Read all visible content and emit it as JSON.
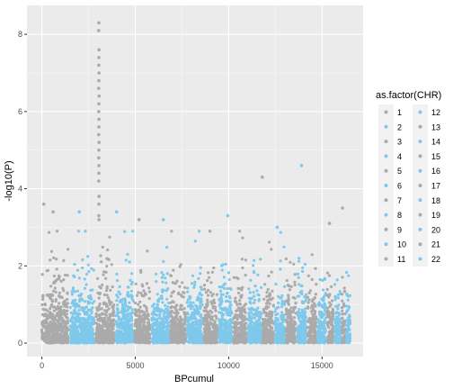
{
  "chart_data": {
    "type": "scatter",
    "title": "",
    "xlabel": "BPcumul",
    "ylabel": "-log10(P)",
    "xlim": [
      -800,
      17200
    ],
    "ylim": [
      -0.35,
      8.75
    ],
    "x_ticks": [
      0,
      5000,
      10000,
      15000
    ],
    "x_tick_labels": [
      "0",
      "5000",
      "10000",
      "15000"
    ],
    "y_ticks": [
      0,
      2,
      4,
      6,
      8
    ],
    "y_tick_labels": [
      "0",
      "2",
      "4",
      "6",
      "8"
    ],
    "grid": true,
    "legend": {
      "title": "as.factor(CHR)",
      "placement": "right",
      "columns": 2,
      "entries": [
        "1",
        "2",
        "3",
        "4",
        "5",
        "6",
        "7",
        "8",
        "9",
        "10",
        "11",
        "12",
        "13",
        "14",
        "15",
        "16",
        "17",
        "18",
        "19",
        "20",
        "21",
        "22"
      ]
    },
    "colors": {
      "odd_chr": "#aaaaaa",
      "even_chr": "#7ec8ec",
      "panel_bg": "#ebebeb",
      "grid": "#ffffff"
    },
    "chromosomes": [
      {
        "chr": 1,
        "x_start": 0,
        "x_end": 1400
      },
      {
        "chr": 2,
        "x_start": 1520,
        "x_end": 2800
      },
      {
        "chr": 3,
        "x_start": 2900,
        "x_end": 3880
      },
      {
        "chr": 4,
        "x_start": 3970,
        "x_end": 4900
      },
      {
        "chr": 5,
        "x_start": 4980,
        "x_end": 5800
      },
      {
        "chr": 6,
        "x_start": 5880,
        "x_end": 6800
      },
      {
        "chr": 7,
        "x_start": 6880,
        "x_end": 7700
      },
      {
        "chr": 8,
        "x_start": 7780,
        "x_end": 8600
      },
      {
        "chr": 9,
        "x_start": 8680,
        "x_end": 9400
      },
      {
        "chr": 10,
        "x_start": 9480,
        "x_end": 10180
      },
      {
        "chr": 11,
        "x_start": 10260,
        "x_end": 10960
      },
      {
        "chr": 12,
        "x_start": 11040,
        "x_end": 11750
      },
      {
        "chr": 13,
        "x_start": 11830,
        "x_end": 12400
      },
      {
        "chr": 14,
        "x_start": 12480,
        "x_end": 13000
      },
      {
        "chr": 15,
        "x_start": 13080,
        "x_end": 13600
      },
      {
        "chr": 16,
        "x_start": 13680,
        "x_end": 14150
      },
      {
        "chr": 17,
        "x_start": 14230,
        "x_end": 14700
      },
      {
        "chr": 18,
        "x_start": 14780,
        "x_end": 15200
      },
      {
        "chr": 19,
        "x_start": 15280,
        "x_end": 15600
      },
      {
        "chr": 20,
        "x_start": 15680,
        "x_end": 16000
      },
      {
        "chr": 21,
        "x_start": 16060,
        "x_end": 16250
      },
      {
        "chr": 22,
        "x_start": 16300,
        "x_end": 16500
      }
    ],
    "notable_points": [
      {
        "x": 3050,
        "y": 8.3
      },
      {
        "x": 3040,
        "y": 8.1
      },
      {
        "x": 3060,
        "y": 7.6
      },
      {
        "x": 3050,
        "y": 7.4
      },
      {
        "x": 3045,
        "y": 7.2
      },
      {
        "x": 3055,
        "y": 7.0
      },
      {
        "x": 3050,
        "y": 6.8
      },
      {
        "x": 3040,
        "y": 6.6
      },
      {
        "x": 3060,
        "y": 6.4
      },
      {
        "x": 3050,
        "y": 6.2
      },
      {
        "x": 3045,
        "y": 6.0
      },
      {
        "x": 3055,
        "y": 5.8
      },
      {
        "x": 3050,
        "y": 5.6
      },
      {
        "x": 3040,
        "y": 5.4
      },
      {
        "x": 3060,
        "y": 5.2
      },
      {
        "x": 3050,
        "y": 5.0
      },
      {
        "x": 3045,
        "y": 4.8
      },
      {
        "x": 3055,
        "y": 4.6
      },
      {
        "x": 3050,
        "y": 4.4
      },
      {
        "x": 3040,
        "y": 4.2
      },
      {
        "x": 3060,
        "y": 3.8
      },
      {
        "x": 3050,
        "y": 3.6
      },
      {
        "x": 3045,
        "y": 3.3
      },
      {
        "x": 3055,
        "y": 3.2
      },
      {
        "x": 100,
        "y": 3.6
      },
      {
        "x": 600,
        "y": 3.4
      },
      {
        "x": 2000,
        "y": 3.4
      },
      {
        "x": 4000,
        "y": 3.4
      },
      {
        "x": 5200,
        "y": 3.2
      },
      {
        "x": 6500,
        "y": 3.2
      },
      {
        "x": 9950,
        "y": 3.3
      },
      {
        "x": 11800,
        "y": 4.3
      },
      {
        "x": 13900,
        "y": 4.6
      },
      {
        "x": 16100,
        "y": 3.5
      },
      {
        "x": 12600,
        "y": 3.0
      },
      {
        "x": 15400,
        "y": 3.1
      }
    ]
  }
}
